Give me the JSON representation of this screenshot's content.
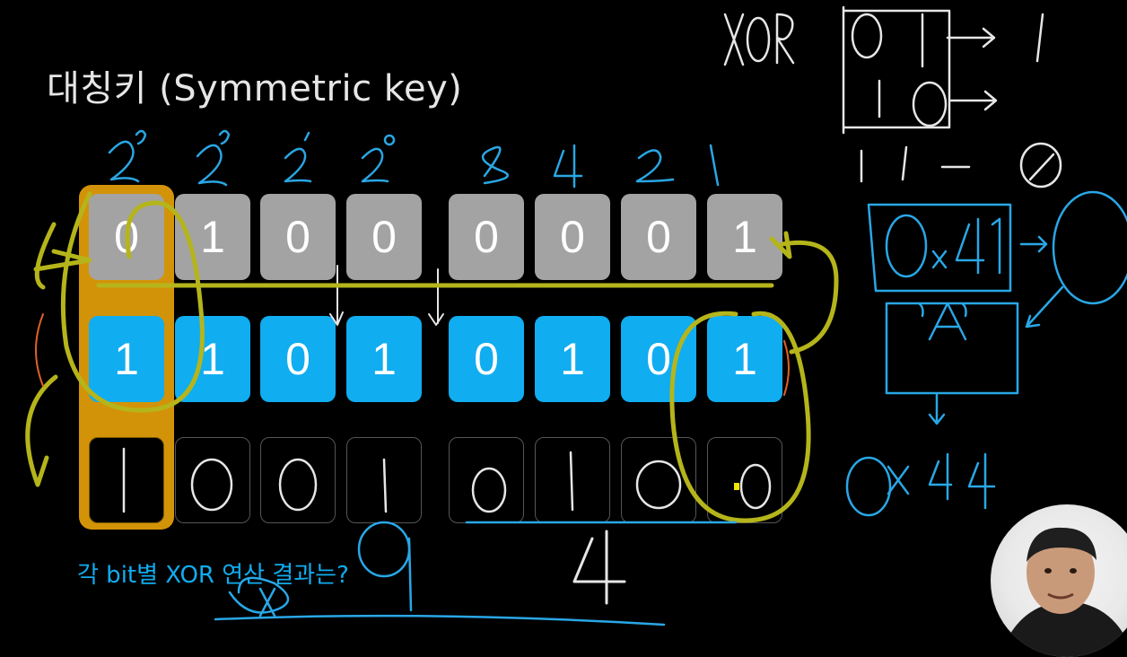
{
  "title": "대칭키 (Symmetric key)",
  "caption": "각 bit별 XOR 연산 결과는?",
  "rows": {
    "plaintext_bits": [
      "0",
      "1",
      "0",
      "0",
      "0",
      "0",
      "0",
      "1"
    ],
    "key_bits": [
      "1",
      "1",
      "0",
      "1",
      "0",
      "1",
      "0",
      "1"
    ]
  },
  "colors": {
    "gray_cell": "#a3a3a3",
    "blue_cell": "#10adf0",
    "highlight": "#d39308",
    "yellow_ink": "#b5b51b",
    "blue_ink": "#29a7e6",
    "white_ink": "#e6e6e6",
    "orange_ink": "#e0602a"
  },
  "icons": {
    "webcam": "presenter-webcam-icon"
  }
}
